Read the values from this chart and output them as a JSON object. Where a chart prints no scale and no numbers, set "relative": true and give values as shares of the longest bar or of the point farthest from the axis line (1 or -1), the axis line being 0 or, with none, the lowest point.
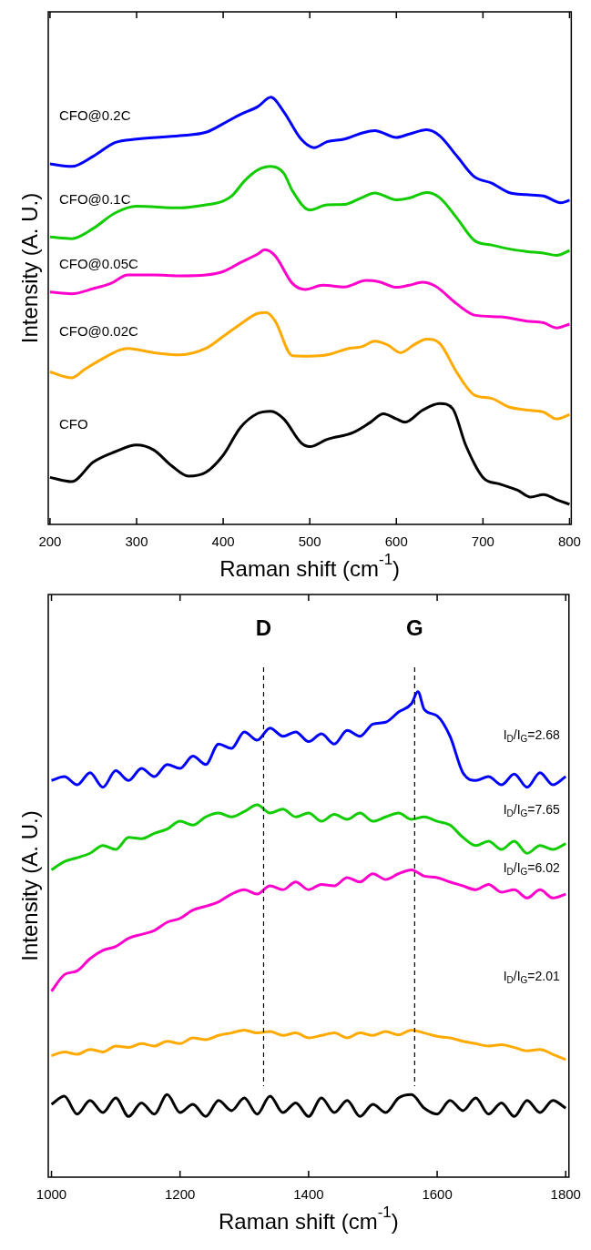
{
  "chart_data": [
    {
      "type": "line",
      "relative": true,
      "xlabel": "Raman shift (cm$^{-1}$)",
      "ylabel": "Intensity (A. U.)",
      "xlim": [
        198,
        802
      ],
      "xticks": [
        200,
        300,
        400,
        500,
        600,
        700,
        800
      ],
      "x": [
        200,
        225,
        250,
        275,
        300,
        350,
        380,
        400,
        420,
        440,
        455,
        470,
        490,
        505,
        520,
        540,
        560,
        575,
        600,
        615,
        635,
        650,
        670,
        690,
        710,
        730,
        750,
        770,
        790,
        800
      ],
      "series": [
        {
          "name": "CFO@0.2C",
          "color": "#0000ff",
          "values": [
            0.844,
            0.838,
            0.862,
            0.894,
            0.902,
            0.91,
            0.918,
            0.938,
            0.96,
            0.978,
            1.0,
            0.966,
            0.902,
            0.882,
            0.896,
            0.902,
            0.916,
            0.922,
            0.906,
            0.914,
            0.924,
            0.91,
            0.862,
            0.814,
            0.799,
            0.777,
            0.772,
            0.769,
            0.753,
            0.759
          ]
        },
        {
          "name": "CFO@0.1C",
          "color": "#11cc00",
          "x": [
            200,
            225,
            250,
            275,
            300,
            350,
            380,
            400,
            410,
            425,
            440,
            455,
            470,
            480,
            500,
            520,
            540,
            560,
            575,
            600,
            615,
            635,
            650,
            670,
            690,
            710,
            730,
            750,
            770,
            785,
            800
          ],
          "values": [
            0.673,
            0.669,
            0.693,
            0.729,
            0.745,
            0.741,
            0.748,
            0.757,
            0.769,
            0.805,
            0.83,
            0.838,
            0.822,
            0.781,
            0.736,
            0.748,
            0.749,
            0.765,
            0.776,
            0.76,
            0.764,
            0.777,
            0.765,
            0.717,
            0.665,
            0.654,
            0.645,
            0.639,
            0.635,
            0.63,
            0.641
          ]
        },
        {
          "name": "CFO@0.05C",
          "color": "#ff00cc",
          "x": [
            200,
            225,
            250,
            270,
            290,
            320,
            350,
            380,
            400,
            420,
            440,
            448,
            460,
            480,
            495,
            515,
            540,
            565,
            580,
            600,
            615,
            630,
            645,
            670,
            690,
            720,
            750,
            770,
            785,
            800
          ],
          "values": [
            0.544,
            0.54,
            0.552,
            0.564,
            0.584,
            0.584,
            0.582,
            0.584,
            0.592,
            0.613,
            0.633,
            0.643,
            0.629,
            0.564,
            0.55,
            0.56,
            0.556,
            0.571,
            0.568,
            0.555,
            0.56,
            0.567,
            0.558,
            0.516,
            0.49,
            0.486,
            0.476,
            0.472,
            0.46,
            0.469
          ]
        },
        {
          "name": "CFO@0.02C",
          "color": "#ffaa00",
          "x": [
            200,
            225,
            240,
            260,
            280,
            290,
            320,
            350,
            380,
            400,
            420,
            440,
            450,
            460,
            480,
            500,
            520,
            545,
            560,
            575,
            590,
            605,
            620,
            635,
            650,
            670,
            690,
            710,
            730,
            755,
            770,
            785,
            800
          ],
          "values": [
            0.357,
            0.343,
            0.363,
            0.387,
            0.408,
            0.412,
            0.402,
            0.397,
            0.412,
            0.44,
            0.469,
            0.494,
            0.496,
            0.476,
            0.395,
            0.394,
            0.397,
            0.412,
            0.416,
            0.429,
            0.42,
            0.402,
            0.42,
            0.434,
            0.424,
            0.355,
            0.303,
            0.295,
            0.275,
            0.267,
            0.263,
            0.247,
            0.257
          ]
        },
        {
          "name": "CFO",
          "color": "#000000",
          "x": [
            200,
            225,
            250,
            275,
            300,
            320,
            340,
            360,
            380,
            400,
            420,
            440,
            455,
            470,
            490,
            500,
            520,
            550,
            570,
            585,
            600,
            610,
            630,
            650,
            665,
            680,
            700,
            720,
            740,
            755,
            770,
            785,
            800
          ],
          "values": [
            0.11,
            0.1,
            0.146,
            0.17,
            0.186,
            0.174,
            0.138,
            0.113,
            0.122,
            0.162,
            0.227,
            0.26,
            0.265,
            0.247,
            0.191,
            0.182,
            0.199,
            0.215,
            0.239,
            0.259,
            0.247,
            0.239,
            0.267,
            0.283,
            0.271,
            0.186,
            0.11,
            0.094,
            0.08,
            0.064,
            0.07,
            0.058,
            0.047
          ]
        }
      ]
    },
    {
      "type": "line",
      "relative": true,
      "xlabel": "Raman shift (cm$^{-1}$)",
      "ylabel": "Intensity (A. U.)",
      "xlim": [
        995,
        1805
      ],
      "xticks": [
        1000,
        1200,
        1400,
        1600,
        1800
      ],
      "x": [
        1000,
        1020,
        1040,
        1060,
        1080,
        1100,
        1120,
        1140,
        1160,
        1180,
        1200,
        1220,
        1240,
        1260,
        1280,
        1300,
        1320,
        1340,
        1360,
        1380,
        1400,
        1420,
        1440,
        1460,
        1480,
        1500,
        1520,
        1540,
        1560,
        1580,
        1600,
        1620,
        1640,
        1660,
        1680,
        1700,
        1720,
        1740,
        1760,
        1780,
        1800
      ],
      "series": [
        {
          "color": "#0000ff",
          "x": [
            1000,
            1020,
            1040,
            1060,
            1080,
            1100,
            1120,
            1140,
            1160,
            1180,
            1200,
            1220,
            1240,
            1260,
            1280,
            1300,
            1320,
            1340,
            1360,
            1380,
            1400,
            1420,
            1440,
            1460,
            1480,
            1500,
            1520,
            1540,
            1560,
            1570,
            1580,
            1600,
            1620,
            1640,
            1660,
            1680,
            1700,
            1720,
            1740,
            1760,
            1780,
            1800
          ],
          "values": [
            0.817,
            0.825,
            0.808,
            0.833,
            0.803,
            0.837,
            0.817,
            0.842,
            0.825,
            0.85,
            0.842,
            0.867,
            0.85,
            0.892,
            0.883,
            0.917,
            0.9,
            0.925,
            0.908,
            0.917,
            0.897,
            0.913,
            0.892,
            0.92,
            0.908,
            0.933,
            0.937,
            0.958,
            0.975,
            1.0,
            0.963,
            0.95,
            0.908,
            0.833,
            0.817,
            0.825,
            0.808,
            0.83,
            0.803,
            0.833,
            0.808,
            0.825
          ]
        },
        {
          "color": "#11cc00",
          "values": [
            0.633,
            0.65,
            0.658,
            0.667,
            0.683,
            0.675,
            0.7,
            0.697,
            0.708,
            0.717,
            0.733,
            0.725,
            0.742,
            0.75,
            0.742,
            0.753,
            0.767,
            0.75,
            0.758,
            0.742,
            0.75,
            0.733,
            0.747,
            0.737,
            0.75,
            0.733,
            0.742,
            0.75,
            0.737,
            0.742,
            0.733,
            0.725,
            0.7,
            0.683,
            0.692,
            0.675,
            0.692,
            0.667,
            0.683,
            0.675,
            0.687
          ]
        },
        {
          "color": "#ff00cc",
          "values": [
            0.383,
            0.417,
            0.425,
            0.45,
            0.467,
            0.475,
            0.492,
            0.5,
            0.508,
            0.525,
            0.533,
            0.55,
            0.558,
            0.567,
            0.583,
            0.592,
            0.583,
            0.6,
            0.592,
            0.608,
            0.592,
            0.603,
            0.6,
            0.617,
            0.608,
            0.625,
            0.613,
            0.625,
            0.633,
            0.62,
            0.617,
            0.608,
            0.6,
            0.592,
            0.603,
            0.587,
            0.592,
            0.575,
            0.592,
            0.575,
            0.583
          ]
        },
        {
          "color": "#ffaa00",
          "values": [
            0.25,
            0.258,
            0.253,
            0.263,
            0.258,
            0.27,
            0.267,
            0.275,
            0.27,
            0.28,
            0.275,
            0.287,
            0.283,
            0.292,
            0.297,
            0.303,
            0.297,
            0.3,
            0.292,
            0.297,
            0.287,
            0.292,
            0.297,
            0.287,
            0.297,
            0.292,
            0.3,
            0.293,
            0.303,
            0.297,
            0.29,
            0.287,
            0.28,
            0.275,
            0.27,
            0.273,
            0.267,
            0.26,
            0.263,
            0.253,
            0.242
          ]
        },
        {
          "color": "#000000",
          "values": [
            0.15,
            0.167,
            0.13,
            0.158,
            0.133,
            0.163,
            0.125,
            0.153,
            0.13,
            0.17,
            0.133,
            0.15,
            0.125,
            0.158,
            0.137,
            0.163,
            0.13,
            0.167,
            0.133,
            0.153,
            0.125,
            0.163,
            0.133,
            0.158,
            0.125,
            0.15,
            0.133,
            0.163,
            0.17,
            0.142,
            0.13,
            0.158,
            0.137,
            0.163,
            0.13,
            0.153,
            0.125,
            0.158,
            0.133,
            0.158,
            0.142
          ]
        }
      ],
      "ref_lines": [
        {
          "axis": "x",
          "value": 1330,
          "label": "D",
          "line_style": "dashed"
        },
        {
          "axis": "x",
          "value": 1565,
          "label": "G",
          "line_style": "dashed"
        }
      ],
      "annotations": [
        "I$_{D}$/I$_{G}$=2.68",
        "I$_{D}$/I$_{G}$=7.65",
        "I$_{D}$/I$_{G}$=6.02",
        "I$_{D}$/I$_{G}$=2.01"
      ]
    }
  ]
}
